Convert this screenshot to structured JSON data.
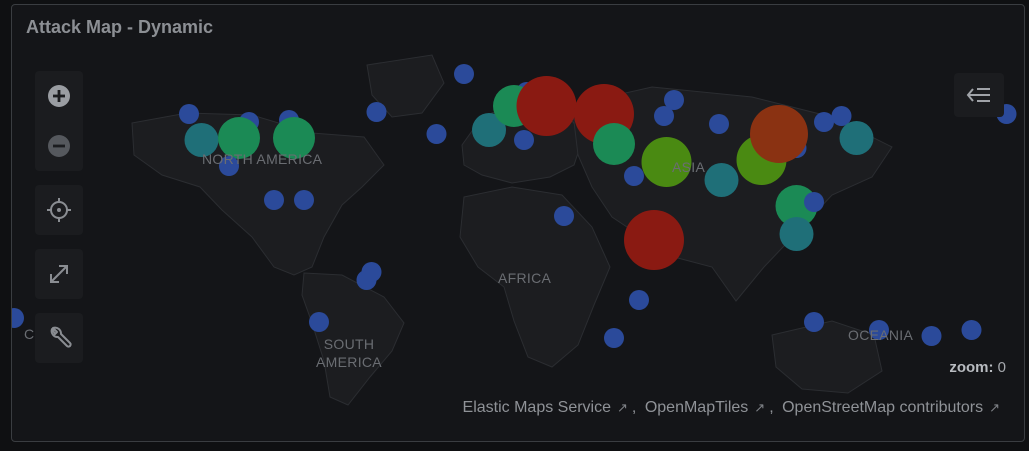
{
  "panel": {
    "title": "Attack Map - Dynamic"
  },
  "map": {
    "region_labels": {
      "north_america": "NORTH AMERICA",
      "asia": "ASIA",
      "africa": "AFRICA",
      "south_america": "SOUTH AMERICA",
      "oceania": "OCEANIA",
      "cutoff_left": "C A"
    },
    "zoom_label": "zoom:",
    "zoom_value": "0",
    "colors": {
      "background": "#141518",
      "land": "#1c1d20",
      "low": "#2b4a9a",
      "mid_teal": "#1f6f78",
      "mid_green": "#1b8a55",
      "high_yellowgreen": "#4a8a12",
      "very_high": "#8a1a12",
      "orange_red": "#8a3212"
    },
    "points": [
      {
        "lon": -20,
        "lat": 68,
        "level": "low"
      },
      {
        "lon": -130,
        "lat": 48,
        "level": "low"
      },
      {
        "lon": -106,
        "lat": 44,
        "level": "low"
      },
      {
        "lon": -90,
        "lat": 45,
        "level": "low"
      },
      {
        "lon": -55,
        "lat": 49,
        "level": "low"
      },
      {
        "lon": -125,
        "lat": 35,
        "level": "mid_teal"
      },
      {
        "lon": -110,
        "lat": 36,
        "level": "mid_green"
      },
      {
        "lon": -88,
        "lat": 36,
        "level": "mid_green"
      },
      {
        "lon": -114,
        "lat": 22,
        "level": "low"
      },
      {
        "lon": -96,
        "lat": 5,
        "level": "low"
      },
      {
        "lon": -84,
        "lat": 5,
        "level": "low"
      },
      {
        "lon": -59,
        "lat": -35,
        "level": "low"
      },
      {
        "lon": -57,
        "lat": -31,
        "level": "low"
      },
      {
        "lon": -78,
        "lat": -56,
        "level": "low"
      },
      {
        "lon": -200,
        "lat": -54,
        "level": "low"
      },
      {
        "lon": -183,
        "lat": -57,
        "level": "low"
      },
      {
        "lon": -183,
        "lat": -62,
        "level": "low"
      },
      {
        "lon": -31,
        "lat": 38,
        "level": "low"
      },
      {
        "lon": -10,
        "lat": 40,
        "level": "mid_teal"
      },
      {
        "lon": 2,
        "lat": 56,
        "level": "low"
      },
      {
        "lon": 5,
        "lat": 59,
        "level": "low"
      },
      {
        "lon": 4,
        "lat": 35,
        "level": "low"
      },
      {
        "lon": 0,
        "lat": 52,
        "level": "mid_green"
      },
      {
        "lon": 13,
        "lat": 52,
        "level": "very_high"
      },
      {
        "lon": 36,
        "lat": 48,
        "level": "very_high"
      },
      {
        "lon": 40,
        "lat": 33,
        "level": "mid_green"
      },
      {
        "lon": 64,
        "lat": 55,
        "level": "low"
      },
      {
        "lon": 60,
        "lat": 47,
        "level": "low"
      },
      {
        "lon": 82,
        "lat": 43,
        "level": "low"
      },
      {
        "lon": 61,
        "lat": 24,
        "level": "high_yellowgreen"
      },
      {
        "lon": 83,
        "lat": 15,
        "level": "mid_teal"
      },
      {
        "lon": 99,
        "lat": 25,
        "level": "high_yellowgreen"
      },
      {
        "lon": 48,
        "lat": 17,
        "level": "low"
      },
      {
        "lon": 113,
        "lat": 31,
        "level": "low"
      },
      {
        "lon": 124,
        "lat": 44,
        "level": "low"
      },
      {
        "lon": 131,
        "lat": 47,
        "level": "low"
      },
      {
        "lon": 137,
        "lat": 36,
        "level": "mid_teal"
      },
      {
        "lon": 113,
        "lat": 2,
        "level": "mid_green"
      },
      {
        "lon": 120,
        "lat": 4,
        "level": "low"
      },
      {
        "lon": 113,
        "lat": -12,
        "level": "mid_teal"
      },
      {
        "lon": 106,
        "lat": 38,
        "level": "orange_red"
      },
      {
        "lon": 56,
        "lat": -15,
        "level": "very_high"
      },
      {
        "lon": 20,
        "lat": -3,
        "level": "low"
      },
      {
        "lon": 50,
        "lat": -45,
        "level": "low"
      },
      {
        "lon": 40,
        "lat": -64,
        "level": "low"
      },
      {
        "lon": 146,
        "lat": -60,
        "level": "low"
      },
      {
        "lon": 167,
        "lat": -63,
        "level": "low"
      },
      {
        "lon": 183,
        "lat": -60,
        "level": "low"
      },
      {
        "lon": 120,
        "lat": -56,
        "level": "low"
      },
      {
        "lon": 197,
        "lat": 48,
        "level": "low"
      }
    ]
  },
  "toolbar": {
    "zoom_in_icon": "plus-circle-icon",
    "zoom_out_icon": "minus-circle-icon",
    "locate_icon": "crosshair-icon",
    "fullscreen_icon": "expand-icon",
    "tools_icon": "wrench-icon",
    "legend_icon": "legend-collapse-icon"
  },
  "attribution": {
    "items": [
      "Elastic Maps Service",
      "OpenMapTiles",
      "OpenStreetMap contributors"
    ]
  }
}
